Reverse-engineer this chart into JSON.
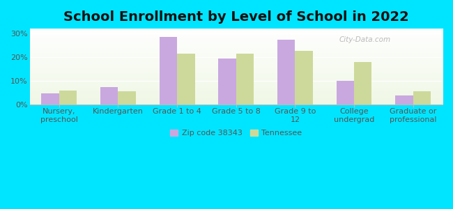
{
  "title": "School Enrollment by Level of School in 2022",
  "categories": [
    "Nursery,\npreschool",
    "Kindergarten",
    "Grade 1 to 4",
    "Grade 5 to 8",
    "Grade 9 to\n12",
    "College\nundergrad",
    "Graduate or\nprofessional"
  ],
  "zip_values": [
    4.5,
    7.2,
    28.5,
    19.5,
    27.2,
    10.0,
    3.8
  ],
  "tn_values": [
    5.8,
    5.5,
    21.5,
    21.5,
    22.5,
    18.0,
    5.5
  ],
  "zip_color": "#c9a8e0",
  "tn_color": "#cdd99a",
  "background_color": "#00e5ff",
  "ylim": [
    0,
    32
  ],
  "yticks": [
    0,
    10,
    20,
    30
  ],
  "ytick_labels": [
    "0%",
    "10%",
    "20%",
    "30%"
  ],
  "legend_zip_label": "Zip code 38343",
  "legend_tn_label": "Tennessee",
  "watermark": "City-Data.com",
  "title_fontsize": 14,
  "tick_fontsize": 8.0
}
